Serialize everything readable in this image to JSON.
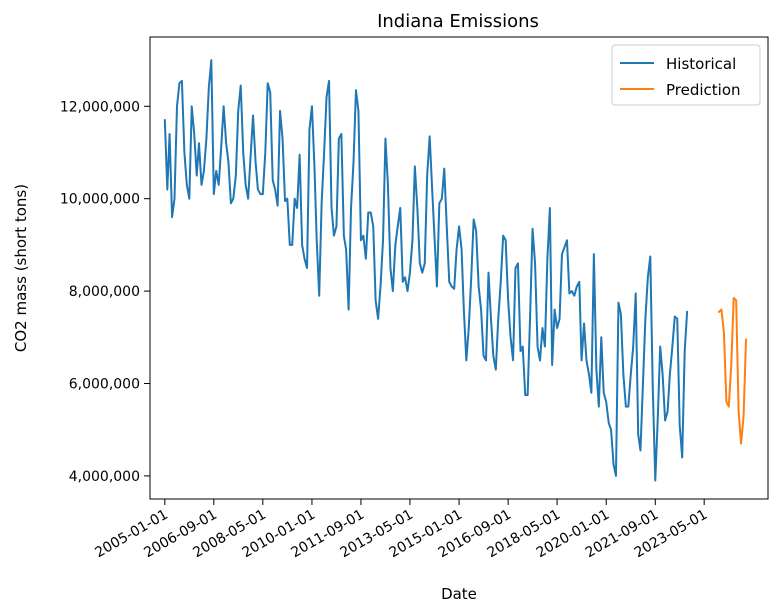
{
  "chart_data": {
    "type": "line",
    "title": "Indiana Emissions",
    "xlabel": "Date",
    "ylabel": "CO2 mass (short tons)",
    "xlim": [
      "2004-07-01",
      "2025-07-01"
    ],
    "ylim": [
      3500000,
      13500000
    ],
    "x_ticks": [
      "2005-01-01",
      "2006-09-01",
      "2008-05-01",
      "2010-01-01",
      "2011-09-01",
      "2013-05-01",
      "2015-01-01",
      "2016-09-01",
      "2018-05-01",
      "2020-01-01",
      "2021-09-01",
      "2023-05-01"
    ],
    "y_ticks": [
      4000000,
      6000000,
      8000000,
      10000000,
      12000000
    ],
    "y_tick_labels": [
      "4,000,000",
      "6,000,000",
      "8,000,000",
      "10,000,000",
      "12,000,000"
    ],
    "grid": false,
    "legend": {
      "position": "top-right"
    },
    "colors": {
      "Historical": "#1f77b4",
      "Prediction": "#ff7f0e"
    },
    "series": [
      {
        "name": "Historical",
        "start": "2005-01",
        "frequency": "monthly",
        "values": [
          11700000,
          10200000,
          11400000,
          9600000,
          10000000,
          12000000,
          12500000,
          12550000,
          11000000,
          10300000,
          10000000,
          12000000,
          11400000,
          10500000,
          11200000,
          10300000,
          10600000,
          11300000,
          12400000,
          13000000,
          10100000,
          10600000,
          10300000,
          11100000,
          12000000,
          11200000,
          10800000,
          9900000,
          10000000,
          10500000,
          11900000,
          12450000,
          11000000,
          10300000,
          10000000,
          10900000,
          11800000,
          10800000,
          10200000,
          10100000,
          10100000,
          11000000,
          12500000,
          12300000,
          10400000,
          10200000,
          9850000,
          11900000,
          11300000,
          9950000,
          10000000,
          9000000,
          9000000,
          10000000,
          9800000,
          10950000,
          9000000,
          8700000,
          8500000,
          11500000,
          12000000,
          10700000,
          9100000,
          7900000,
          9900000,
          11000000,
          12200000,
          12550000,
          9800000,
          9200000,
          9400000,
          11300000,
          11400000,
          9200000,
          8900000,
          7600000,
          9800000,
          10800000,
          12350000,
          11900000,
          9100000,
          9200000,
          8700000,
          9700000,
          9700000,
          9400000,
          7800000,
          7400000,
          8100000,
          9100000,
          11300000,
          10300000,
          8500000,
          8000000,
          9000000,
          9400000,
          9800000,
          8200000,
          8300000,
          8000000,
          8400000,
          9100000,
          10700000,
          9800000,
          8600000,
          8400000,
          8600000,
          10500000,
          11350000,
          10200000,
          9200000,
          8100000,
          9900000,
          10000000,
          10650000,
          9400000,
          8200000,
          8100000,
          8050000,
          8900000,
          9400000,
          8900000,
          7600000,
          6500000,
          7200000,
          8300000,
          9550000,
          9300000,
          8100000,
          7600000,
          6600000,
          6500000,
          8400000,
          7400000,
          6600000,
          6300000,
          7400000,
          8200000,
          9200000,
          9100000,
          7800000,
          7000000,
          6500000,
          8500000,
          8600000,
          6700000,
          6800000,
          5750000,
          5750000,
          7500000,
          9350000,
          8600000,
          6800000,
          6500000,
          7200000,
          6800000,
          8700000,
          9800000,
          6400000,
          7600000,
          7200000,
          7400000,
          8800000,
          8950000,
          9100000,
          7950000,
          8000000,
          7900000,
          8100000,
          8200000,
          6500000,
          7300000,
          6500000,
          6200000,
          5800000,
          8800000,
          6300000,
          5500000,
          7000000,
          5800000,
          5600000,
          5150000,
          5000000,
          4250000,
          4000000,
          7750000,
          7500000,
          6200000,
          5500000,
          5500000,
          6200000,
          6800000,
          7950000,
          4900000,
          4550000,
          6000000,
          7400000,
          8300000,
          8750000,
          5900000,
          3900000,
          5200000,
          6800000,
          6200000,
          5200000,
          5400000,
          6200000,
          6800000,
          7450000,
          7400000,
          5100000,
          4400000,
          6700000,
          7550000
        ]
      },
      {
        "name": "Prediction",
        "start": "2023-11",
        "frequency": "monthly",
        "values": [
          7550000,
          7600000,
          7100000,
          5600000,
          5500000,
          6400000,
          7850000,
          7800000,
          5400000,
          4700000,
          5300000,
          6950000
        ]
      }
    ]
  }
}
